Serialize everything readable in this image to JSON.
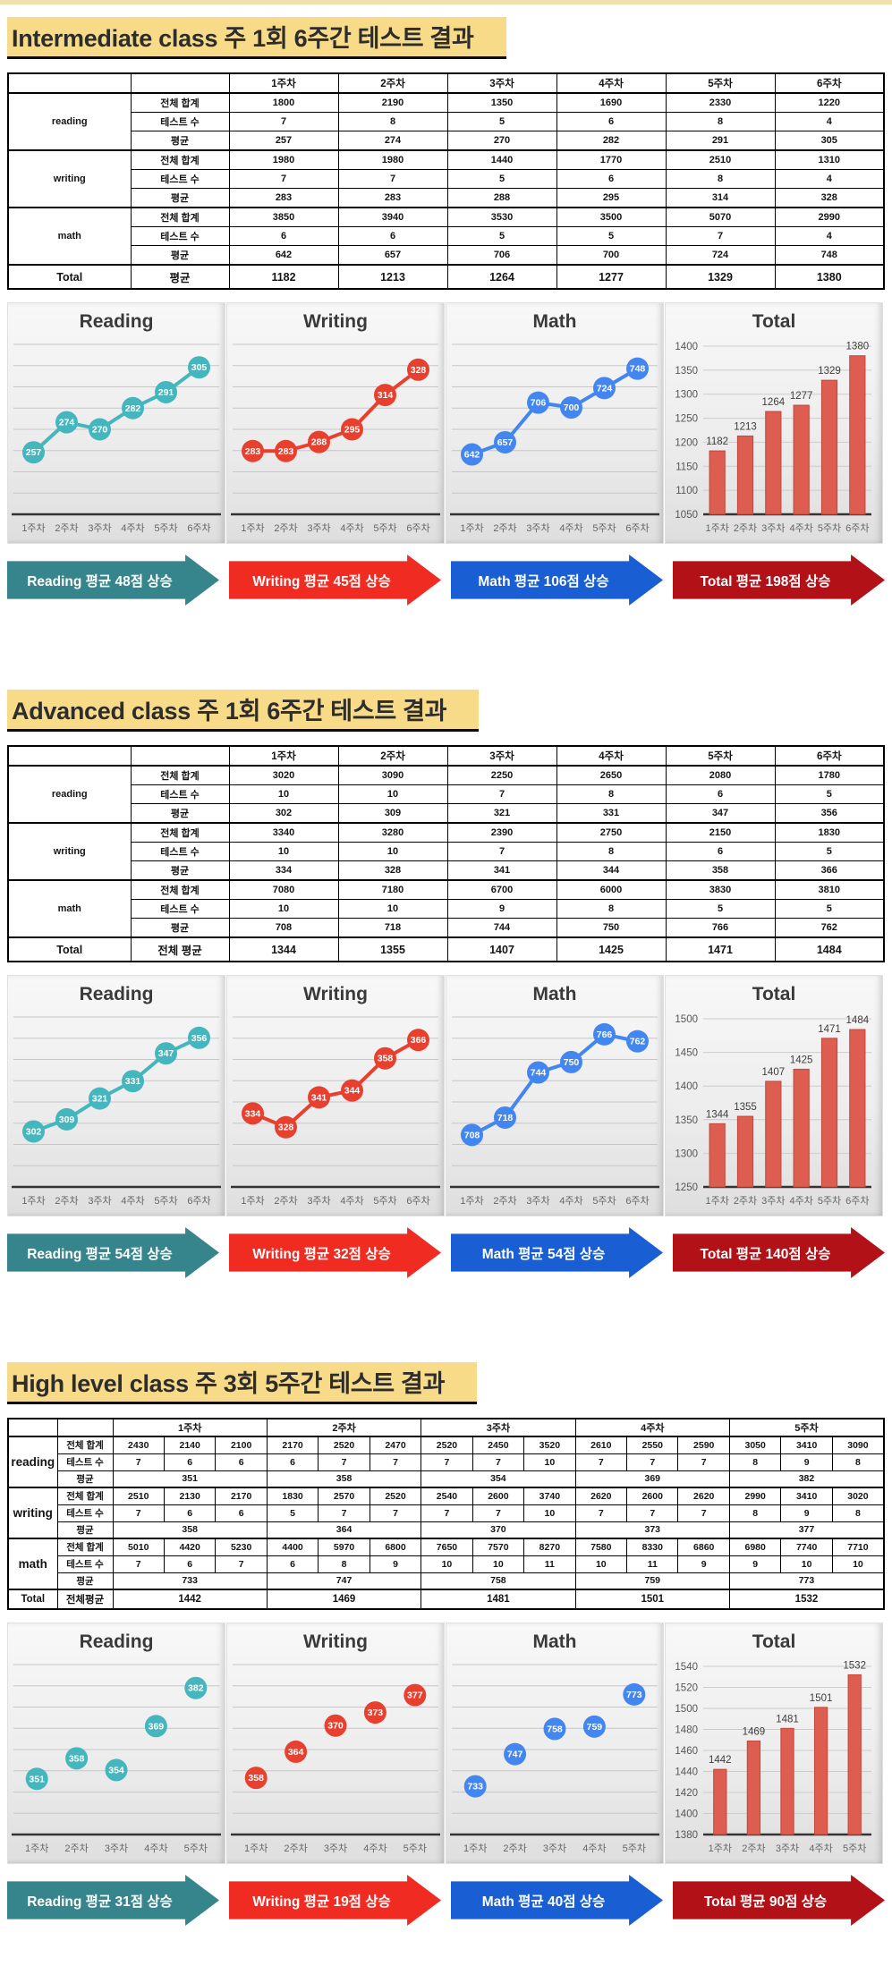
{
  "sections": [
    {
      "id": "intermediate",
      "title": "Intermediate class 주 1회 6주간 테스트 결과",
      "table": {
        "subject_col_w": 137,
        "label_col_w": 110,
        "value_cols": 6,
        "week_span": 1,
        "week_headers": [
          "1주차",
          "2주차",
          "3주차",
          "4주차",
          "5주차",
          "6주차"
        ],
        "groups": [
          {
            "subject": "reading",
            "rows": [
              {
                "label": "전체 합계",
                "span": 1,
                "values": [
                  1800,
                  2190,
                  1350,
                  1690,
                  2330,
                  1220
                ]
              },
              {
                "label": "테스트 수",
                "span": 1,
                "values": [
                  7,
                  8,
                  5,
                  6,
                  8,
                  4
                ]
              },
              {
                "label": "평균",
                "span": 1,
                "values": [
                  257,
                  274,
                  270,
                  282,
                  291,
                  305
                ]
              }
            ]
          },
          {
            "subject": "writing",
            "rows": [
              {
                "label": "전체 합계",
                "span": 1,
                "values": [
                  1980,
                  1980,
                  1440,
                  1770,
                  2510,
                  1310
                ]
              },
              {
                "label": "테스트 수",
                "span": 1,
                "values": [
                  7,
                  7,
                  5,
                  6,
                  8,
                  4
                ]
              },
              {
                "label": "평균",
                "span": 1,
                "values": [
                  283,
                  283,
                  288,
                  295,
                  314,
                  328
                ]
              }
            ]
          },
          {
            "subject": "math",
            "rows": [
              {
                "label": "전체 합계",
                "span": 1,
                "values": [
                  3850,
                  3940,
                  3530,
                  3500,
                  5070,
                  2990
                ]
              },
              {
                "label": "테스트 수",
                "span": 1,
                "values": [
                  6,
                  6,
                  5,
                  5,
                  7,
                  4
                ]
              },
              {
                "label": "평균",
                "span": 1,
                "values": [
                  642,
                  657,
                  706,
                  700,
                  724,
                  748
                ]
              }
            ]
          }
        ],
        "total": {
          "title": "Total",
          "label": "평균",
          "span": 1,
          "values": [
            1182,
            1213,
            1264,
            1277,
            1329,
            1380
          ]
        }
      },
      "charts": [
        {
          "id": "reading",
          "title": "Reading",
          "type": "line",
          "color": "#45b6be",
          "categories": [
            "1주차",
            "2주차",
            "3주차",
            "4주차",
            "5주차",
            "6주차"
          ],
          "values": [
            257,
            274,
            270,
            282,
            291,
            305
          ],
          "ylim": [
            222,
            318
          ]
        },
        {
          "id": "writing",
          "title": "Writing",
          "type": "line",
          "color": "#e8402f",
          "categories": [
            "1주차",
            "2주차",
            "3주차",
            "4주차",
            "5주차",
            "6주차"
          ],
          "values": [
            283,
            283,
            288,
            295,
            314,
            328
          ],
          "ylim": [
            248,
            342
          ]
        },
        {
          "id": "math",
          "title": "Math",
          "type": "line",
          "color": "#4486ef",
          "categories": [
            "1주차",
            "2주차",
            "3주차",
            "4주차",
            "5주차",
            "6주차"
          ],
          "values": [
            642,
            657,
            706,
            700,
            724,
            748
          ],
          "ylim": [
            568,
            778
          ]
        },
        {
          "id": "total",
          "title": "Total",
          "type": "bar",
          "color": "#dd5d51",
          "border": "#c3473c",
          "categories": [
            "1주차",
            "2주차",
            "3주차",
            "4주차",
            "5주차",
            "6주차"
          ],
          "values": [
            1182,
            1213,
            1264,
            1277,
            1329,
            1380
          ],
          "ylim": [
            1050,
            1400
          ],
          "ytick": 50
        }
      ],
      "arrows": [
        {
          "id": "reading",
          "color": "#37858c",
          "text": "Reading 평균 48점 상승"
        },
        {
          "id": "writing",
          "color": "#f02b21",
          "text": "Writing 평균 45점 상승"
        },
        {
          "id": "math",
          "color": "#1a5ed3",
          "text": "Math 평균 106점 상승"
        },
        {
          "id": "total",
          "color": "#b21118",
          "text": "Total 평균 198점 상승"
        }
      ]
    },
    {
      "id": "advanced",
      "title": "Advanced class 주 1회 6주간 테스트 결과",
      "table": {
        "subject_col_w": 137,
        "label_col_w": 110,
        "value_cols": 6,
        "week_span": 1,
        "week_headers": [
          "1주차",
          "2주차",
          "3주차",
          "4주차",
          "5주차",
          "6주차"
        ],
        "groups": [
          {
            "subject": "reading",
            "rows": [
              {
                "label": "전체 합계",
                "span": 1,
                "values": [
                  3020,
                  3090,
                  2250,
                  2650,
                  2080,
                  1780
                ]
              },
              {
                "label": "테스트 수",
                "span": 1,
                "values": [
                  10,
                  10,
                  7,
                  8,
                  6,
                  5
                ]
              },
              {
                "label": "평균",
                "span": 1,
                "values": [
                  302,
                  309,
                  321,
                  331,
                  347,
                  356
                ]
              }
            ]
          },
          {
            "subject": "writing",
            "rows": [
              {
                "label": "전체 합계",
                "span": 1,
                "values": [
                  3340,
                  3280,
                  2390,
                  2750,
                  2150,
                  1830
                ]
              },
              {
                "label": "테스트 수",
                "span": 1,
                "values": [
                  10,
                  10,
                  7,
                  8,
                  6,
                  5
                ]
              },
              {
                "label": "평균",
                "span": 1,
                "values": [
                  334,
                  328,
                  341,
                  344,
                  358,
                  366
                ]
              }
            ]
          },
          {
            "subject": "math",
            "rows": [
              {
                "label": "전체 합계",
                "span": 1,
                "values": [
                  7080,
                  7180,
                  6700,
                  6000,
                  3830,
                  3810
                ]
              },
              {
                "label": "테스트 수",
                "span": 1,
                "values": [
                  10,
                  10,
                  9,
                  8,
                  5,
                  5
                ]
              },
              {
                "label": "평균",
                "span": 1,
                "values": [
                  708,
                  718,
                  744,
                  750,
                  766,
                  762
                ]
              }
            ]
          }
        ],
        "total": {
          "title": "Total",
          "label": "전체 평균",
          "span": 1,
          "values": [
            1344,
            1355,
            1407,
            1425,
            1471,
            1484
          ]
        }
      },
      "charts": [
        {
          "id": "reading",
          "title": "Reading",
          "type": "line",
          "color": "#45b6be",
          "categories": [
            "1주차",
            "2주차",
            "3주차",
            "4주차",
            "5주차",
            "6주차"
          ],
          "values": [
            302,
            309,
            321,
            331,
            347,
            356
          ],
          "ylim": [
            270,
            368
          ]
        },
        {
          "id": "writing",
          "title": "Writing",
          "type": "line",
          "color": "#e8402f",
          "categories": [
            "1주차",
            "2주차",
            "3주차",
            "4주차",
            "5주차",
            "6주차"
          ],
          "values": [
            334,
            328,
            341,
            344,
            358,
            366
          ],
          "ylim": [
            302,
            376
          ]
        },
        {
          "id": "math",
          "title": "Math",
          "type": "line",
          "color": "#4486ef",
          "categories": [
            "1주차",
            "2주차",
            "3주차",
            "4주차",
            "5주차",
            "6주차"
          ],
          "values": [
            708,
            718,
            744,
            750,
            766,
            762
          ],
          "ylim": [
            678,
            776
          ]
        },
        {
          "id": "total",
          "title": "Total",
          "type": "bar",
          "color": "#dd5d51",
          "border": "#c3473c",
          "categories": [
            "1주차",
            "2주차",
            "3주차",
            "4주차",
            "5주차",
            "6주차"
          ],
          "values": [
            1344,
            1355,
            1407,
            1425,
            1471,
            1484
          ],
          "ylim": [
            1250,
            1500
          ],
          "ytick": 50
        }
      ],
      "arrows": [
        {
          "id": "reading",
          "color": "#37858c",
          "text": "Reading 평균 54점 상승"
        },
        {
          "id": "writing",
          "color": "#f02b21",
          "text": "Writing 평균 32점 상승"
        },
        {
          "id": "math",
          "color": "#1a5ed3",
          "text": "Math 평균 54점 상승"
        },
        {
          "id": "total",
          "color": "#b21118",
          "text": "Total 평균 140점 상승"
        }
      ]
    },
    {
      "id": "high-level",
      "title": "High level class 주 3회 5주간 테스트 결과",
      "table": {
        "compact": true,
        "subject_col_w": 55,
        "label_col_w": 62,
        "value_cols": 15,
        "week_span": 3,
        "week_headers": [
          "1주차",
          "2주차",
          "3주차",
          "4주차",
          "5주차"
        ],
        "groups": [
          {
            "subject": "reading",
            "rows": [
              {
                "label": "전체 합계",
                "span": 1,
                "values": [
                  2430,
                  2140,
                  2100,
                  2170,
                  2520,
                  2470,
                  2520,
                  2450,
                  3520,
                  2610,
                  2550,
                  2590,
                  3050,
                  3410,
                  3090
                ]
              },
              {
                "label": "테스트 수",
                "span": 1,
                "values": [
                  7,
                  6,
                  6,
                  6,
                  7,
                  7,
                  7,
                  7,
                  10,
                  7,
                  7,
                  7,
                  8,
                  9,
                  8
                ]
              },
              {
                "label": "평균",
                "span": 3,
                "values": [
                  351,
                  358,
                  354,
                  369,
                  382
                ]
              }
            ]
          },
          {
            "subject": "writing",
            "rows": [
              {
                "label": "전체 합계",
                "span": 1,
                "values": [
                  2510,
                  2130,
                  2170,
                  1830,
                  2570,
                  2520,
                  2540,
                  2600,
                  3740,
                  2620,
                  2600,
                  2620,
                  2990,
                  3410,
                  3020
                ]
              },
              {
                "label": "테스트 수",
                "span": 1,
                "values": [
                  7,
                  6,
                  6,
                  5,
                  7,
                  7,
                  7,
                  7,
                  10,
                  7,
                  7,
                  7,
                  8,
                  9,
                  8
                ]
              },
              {
                "label": "평균",
                "span": 3,
                "values": [
                  358,
                  364,
                  370,
                  373,
                  377
                ]
              }
            ]
          },
          {
            "subject": "math",
            "rows": [
              {
                "label": "전체 합계",
                "span": 1,
                "values": [
                  5010,
                  4420,
                  5230,
                  4400,
                  5970,
                  6800,
                  7650,
                  7570,
                  8270,
                  7580,
                  8330,
                  6860,
                  6980,
                  7740,
                  7710
                ]
              },
              {
                "label": "테스트 수",
                "span": 1,
                "values": [
                  7,
                  6,
                  7,
                  6,
                  8,
                  9,
                  10,
                  10,
                  11,
                  10,
                  11,
                  9,
                  9,
                  10,
                  10
                ]
              },
              {
                "label": "평균",
                "span": 3,
                "values": [
                  733,
                  747,
                  758,
                  759,
                  773
                ]
              }
            ]
          }
        ],
        "total": {
          "title": "Total",
          "label": "전체평균",
          "span": 3,
          "values": [
            1442,
            1469,
            1481,
            1501,
            1532
          ]
        }
      },
      "charts": [
        {
          "id": "reading",
          "title": "Reading",
          "type": "scatter",
          "color": "#45b6be",
          "categories": [
            "1주차",
            "2주차",
            "3주차",
            "4주차",
            "5주차"
          ],
          "values": [
            351,
            358,
            354,
            369,
            382
          ],
          "ylim": [
            332,
            390
          ]
        },
        {
          "id": "writing",
          "title": "Writing",
          "type": "scatter",
          "color": "#e8402f",
          "categories": [
            "1주차",
            "2주차",
            "3주차",
            "4주차",
            "5주차"
          ],
          "values": [
            358,
            364,
            370,
            373,
            377
          ],
          "ylim": [
            345,
            384
          ]
        },
        {
          "id": "math",
          "title": "Math",
          "type": "scatter",
          "color": "#4486ef",
          "categories": [
            "1주차",
            "2주차",
            "3주차",
            "4주차",
            "5주차"
          ],
          "values": [
            733,
            747,
            758,
            759,
            773
          ],
          "ylim": [
            712,
            786
          ]
        },
        {
          "id": "total",
          "title": "Total",
          "type": "bar",
          "color": "#dd5d51",
          "border": "#c3473c",
          "categories": [
            "1주차",
            "2주차",
            "3주차",
            "4주차",
            "5주차"
          ],
          "values": [
            1442,
            1469,
            1481,
            1501,
            1532
          ],
          "ylim": [
            1380,
            1540
          ],
          "ytick": 20
        }
      ],
      "arrows": [
        {
          "id": "reading",
          "color": "#37858c",
          "text": "Reading 평균 31점 상승"
        },
        {
          "id": "writing",
          "color": "#f02b21",
          "text": "Writing 평균 19점 상승"
        },
        {
          "id": "math",
          "color": "#1a5ed3",
          "text": "Math 평균 40점 상승"
        },
        {
          "id": "total",
          "color": "#b21118",
          "text": "Total 평균 90점 상승"
        }
      ]
    }
  ]
}
